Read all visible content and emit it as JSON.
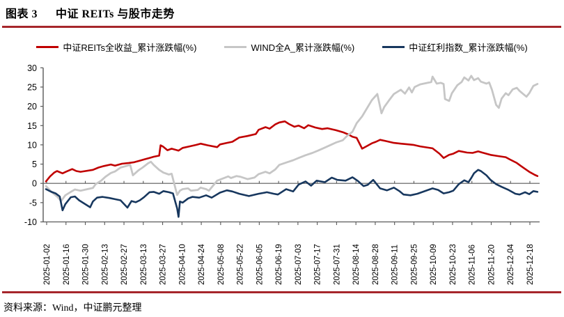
{
  "header": {
    "tag": "图表 3",
    "title": "中证 REITs 与股市走势"
  },
  "footer": {
    "source": "资料来源：Wind，中证鹏元整理"
  },
  "colors": {
    "accent_rule": "#A6262B",
    "axis": "#595959",
    "label_text": "#000000",
    "background": "#FFFFFF"
  },
  "chart_data": {
    "type": "line",
    "title": "中证 REITs 与股市走势",
    "xlabel": "",
    "ylabel": "累计涨跌幅(%)",
    "ylim": [
      -10,
      30
    ],
    "y_ticks": [
      30,
      25,
      20,
      15,
      10,
      5,
      0,
      -5,
      -10
    ],
    "grid": "off",
    "legend_position": "top-center",
    "x_axis_note": "calendar days, day 0 = 2025-01-02, tick every 14 days",
    "x_tick_labels": [
      "2025-01-02",
      "2025-01-16",
      "2025-01-30",
      "2025-02-13",
      "2025-02-27",
      "2025-03-13",
      "2025-03-27",
      "2025-04-10",
      "2025-04-24",
      "2025-05-08",
      "2025-05-22",
      "2025-06-05",
      "2025-06-19",
      "2025-07-03",
      "2025-07-17",
      "2025-07-31",
      "2025-08-14",
      "2025-08-28",
      "2025-09-11",
      "2025-09-25",
      "2025-10-09",
      "2025-10-23",
      "2025-11-06",
      "2025-11-20",
      "2025-12-04",
      "2025-12-18"
    ],
    "series": [
      {
        "name": "中证REITs全收益_累计涨跌幅(%)",
        "color": "#C00000",
        "width": 2.6,
        "points": [
          [
            0,
            0.5
          ],
          [
            3,
            1.8
          ],
          [
            6,
            2.8
          ],
          [
            8,
            3.2
          ],
          [
            12,
            2.6
          ],
          [
            15,
            3.1
          ],
          [
            19,
            3.7
          ],
          [
            22,
            3.2
          ],
          [
            25,
            3.0
          ],
          [
            34,
            3.5
          ],
          [
            38,
            4.1
          ],
          [
            42,
            4.5
          ],
          [
            47,
            4.9
          ],
          [
            50,
            4.6
          ],
          [
            55,
            5.1
          ],
          [
            60,
            5.3
          ],
          [
            64,
            5.5
          ],
          [
            68,
            5.9
          ],
          [
            71,
            6.2
          ],
          [
            75,
            6.6
          ],
          [
            78,
            6.9
          ],
          [
            82,
            7.2
          ],
          [
            83,
            9.9
          ],
          [
            85,
            9.5
          ],
          [
            88,
            8.6
          ],
          [
            91,
            9.0
          ],
          [
            96,
            8.5
          ],
          [
            99,
            9.2
          ],
          [
            104,
            9.6
          ],
          [
            109,
            10.0
          ],
          [
            112,
            10.3
          ],
          [
            117,
            9.9
          ],
          [
            124,
            9.4
          ],
          [
            126,
            10.1
          ],
          [
            131,
            10.5
          ],
          [
            135,
            10.8
          ],
          [
            140,
            11.9
          ],
          [
            146,
            12.3
          ],
          [
            152,
            12.8
          ],
          [
            154,
            13.9
          ],
          [
            159,
            14.6
          ],
          [
            162,
            14.2
          ],
          [
            166,
            15.3
          ],
          [
            169,
            15.8
          ],
          [
            173,
            16.1
          ],
          [
            176,
            15.4
          ],
          [
            180,
            14.7
          ],
          [
            183,
            15.0
          ],
          [
            187,
            14.3
          ],
          [
            190,
            15.1
          ],
          [
            195,
            14.5
          ],
          [
            200,
            14.1
          ],
          [
            204,
            14.3
          ],
          [
            210,
            13.8
          ],
          [
            215,
            13.3
          ],
          [
            219,
            12.7
          ],
          [
            222,
            12.1
          ],
          [
            225,
            11.8
          ],
          [
            229,
            9.0
          ],
          [
            232,
            9.6
          ],
          [
            236,
            10.4
          ],
          [
            239,
            10.8
          ],
          [
            242,
            11.3
          ],
          [
            246,
            11.0
          ],
          [
            252,
            10.5
          ],
          [
            257,
            10.3
          ],
          [
            263,
            10.1
          ],
          [
            266,
            10.0
          ],
          [
            271,
            9.6
          ],
          [
            280,
            9.1
          ],
          [
            285,
            7.7
          ],
          [
            288,
            6.6
          ],
          [
            292,
            7.4
          ],
          [
            295,
            7.7
          ],
          [
            299,
            8.4
          ],
          [
            305,
            8.0
          ],
          [
            309,
            7.9
          ],
          [
            313,
            8.3
          ],
          [
            316,
            8.0
          ],
          [
            322,
            7.4
          ],
          [
            327,
            7.1
          ],
          [
            333,
            6.8
          ],
          [
            336,
            6.2
          ],
          [
            341,
            5.3
          ],
          [
            344,
            4.5
          ],
          [
            348,
            3.5
          ],
          [
            350,
            3.0
          ],
          [
            354,
            2.2
          ],
          [
            356,
            1.9
          ]
        ]
      },
      {
        "name": "WIND全A_累计涨跌幅(%)",
        "color": "#C6C6C6",
        "width": 2.8,
        "points": [
          [
            0,
            -0.7
          ],
          [
            4,
            -2.2
          ],
          [
            8,
            -3.4
          ],
          [
            11,
            -4.6
          ],
          [
            14,
            -3.1
          ],
          [
            18,
            -2.2
          ],
          [
            21,
            -1.6
          ],
          [
            25,
            -1.9
          ],
          [
            34,
            -1.2
          ],
          [
            36,
            -0.2
          ],
          [
            40,
            0.7
          ],
          [
            43,
            1.7
          ],
          [
            47,
            2.7
          ],
          [
            50,
            3.1
          ],
          [
            54,
            4.1
          ],
          [
            57,
            4.4
          ],
          [
            61,
            4.8
          ],
          [
            63,
            2.1
          ],
          [
            67,
            3.4
          ],
          [
            70,
            4.1
          ],
          [
            74,
            5.2
          ],
          [
            76,
            5.6
          ],
          [
            78,
            4.8
          ],
          [
            82,
            3.5
          ],
          [
            85,
            2.8
          ],
          [
            89,
            2.3
          ],
          [
            91,
            2.5
          ],
          [
            92,
            1.2
          ],
          [
            95,
            -3.0
          ],
          [
            97,
            -1.9
          ],
          [
            99,
            -1.5
          ],
          [
            103,
            -1.3
          ],
          [
            105,
            -1.9
          ],
          [
            110,
            -1.7
          ],
          [
            112,
            -1.1
          ],
          [
            116,
            -1.5
          ],
          [
            118,
            -1.9
          ],
          [
            124,
            0.7
          ],
          [
            127,
            1.1
          ],
          [
            132,
            1.8
          ],
          [
            134,
            1.4
          ],
          [
            138,
            1.9
          ],
          [
            141,
            1.7
          ],
          [
            146,
            1.1
          ],
          [
            151,
            1.5
          ],
          [
            154,
            2.4
          ],
          [
            159,
            3.0
          ],
          [
            162,
            2.6
          ],
          [
            166,
            3.6
          ],
          [
            169,
            4.8
          ],
          [
            174,
            5.4
          ],
          [
            179,
            6.0
          ],
          [
            183,
            6.6
          ],
          [
            188,
            7.3
          ],
          [
            193,
            7.9
          ],
          [
            197,
            8.5
          ],
          [
            202,
            9.3
          ],
          [
            207,
            10.1
          ],
          [
            210,
            10.6
          ],
          [
            215,
            11.2
          ],
          [
            218,
            12.3
          ],
          [
            222,
            13.4
          ],
          [
            225,
            15.6
          ],
          [
            229,
            17.4
          ],
          [
            232,
            19.2
          ],
          [
            236,
            21.6
          ],
          [
            240,
            23.2
          ],
          [
            243,
            18.2
          ],
          [
            245,
            19.8
          ],
          [
            249,
            21.8
          ],
          [
            252,
            23.2
          ],
          [
            257,
            24.3
          ],
          [
            260,
            23.3
          ],
          [
            263,
            24.9
          ],
          [
            265,
            23.6
          ],
          [
            267,
            25.0
          ],
          [
            271,
            25.7
          ],
          [
            279,
            26.3
          ],
          [
            280,
            27.7
          ],
          [
            283,
            25.9
          ],
          [
            286,
            26.1
          ],
          [
            288,
            25.8
          ],
          [
            289,
            21.9
          ],
          [
            292,
            21.4
          ],
          [
            294,
            23.4
          ],
          [
            298,
            25.5
          ],
          [
            301,
            26.3
          ],
          [
            303,
            27.5
          ],
          [
            306,
            26.7
          ],
          [
            308,
            27.9
          ],
          [
            310,
            26.8
          ],
          [
            313,
            27.3
          ],
          [
            315,
            26.4
          ],
          [
            319,
            25.9
          ],
          [
            321,
            26.2
          ],
          [
            323,
            24.3
          ],
          [
            326,
            20.4
          ],
          [
            328,
            19.6
          ],
          [
            330,
            22.0
          ],
          [
            333,
            23.4
          ],
          [
            335,
            22.9
          ],
          [
            338,
            24.4
          ],
          [
            341,
            24.8
          ],
          [
            343,
            24.0
          ],
          [
            345,
            23.4
          ],
          [
            348,
            22.5
          ],
          [
            350,
            23.4
          ],
          [
            353,
            25.3
          ],
          [
            356,
            25.8
          ]
        ]
      },
      {
        "name": "中证红利指数_累计涨跌幅(%)",
        "color": "#17375E",
        "width": 2.6,
        "points": [
          [
            0,
            -1.5
          ],
          [
            4,
            -2.2
          ],
          [
            7,
            -2.6
          ],
          [
            10,
            -3.4
          ],
          [
            12,
            -7.0
          ],
          [
            14,
            -5.4
          ],
          [
            18,
            -3.6
          ],
          [
            21,
            -3.4
          ],
          [
            24,
            -4.4
          ],
          [
            32,
            -6.2
          ],
          [
            34,
            -4.7
          ],
          [
            37,
            -3.7
          ],
          [
            41,
            -3.5
          ],
          [
            46,
            -3.8
          ],
          [
            50,
            -4.1
          ],
          [
            54,
            -4.4
          ],
          [
            59,
            -6.3
          ],
          [
            62,
            -4.6
          ],
          [
            65,
            -4.9
          ],
          [
            68,
            -4.4
          ],
          [
            71,
            -3.6
          ],
          [
            75,
            -2.3
          ],
          [
            78,
            -2.2
          ],
          [
            82,
            -2.7
          ],
          [
            85,
            -2.0
          ],
          [
            89,
            -2.3
          ],
          [
            92,
            -2.6
          ],
          [
            95,
            -6.5
          ],
          [
            96,
            -8.7
          ],
          [
            97,
            -4.7
          ],
          [
            99,
            -5.0
          ],
          [
            103,
            -3.9
          ],
          [
            106,
            -3.5
          ],
          [
            111,
            -3.7
          ],
          [
            116,
            -3.1
          ],
          [
            120,
            -3.7
          ],
          [
            126,
            -2.4
          ],
          [
            131,
            -1.8
          ],
          [
            135,
            -2.1
          ],
          [
            140,
            -2.7
          ],
          [
            147,
            -3.3
          ],
          [
            154,
            -2.7
          ],
          [
            160,
            -2.3
          ],
          [
            165,
            -2.7
          ],
          [
            168,
            -2.9
          ],
          [
            174,
            -1.5
          ],
          [
            179,
            -2.1
          ],
          [
            183,
            -0.3
          ],
          [
            188,
            0.5
          ],
          [
            192,
            -0.6
          ],
          [
            196,
            0.7
          ],
          [
            202,
            0.3
          ],
          [
            207,
            1.5
          ],
          [
            211,
            0.9
          ],
          [
            217,
            0.7
          ],
          [
            222,
            1.6
          ],
          [
            226,
            0.6
          ],
          [
            230,
            -0.7
          ],
          [
            233,
            -0.4
          ],
          [
            237,
            0.9
          ],
          [
            242,
            -1.3
          ],
          [
            247,
            -1.8
          ],
          [
            252,
            -1.1
          ],
          [
            256,
            -2.0
          ],
          [
            259,
            -2.9
          ],
          [
            264,
            -3.1
          ],
          [
            269,
            -2.7
          ],
          [
            280,
            -1.3
          ],
          [
            284,
            -1.7
          ],
          [
            288,
            -2.6
          ],
          [
            292,
            -2.3
          ],
          [
            295,
            -1.9
          ],
          [
            299,
            -0.2
          ],
          [
            303,
            0.8
          ],
          [
            306,
            0.3
          ],
          [
            308,
            1.4
          ],
          [
            310,
            2.6
          ],
          [
            313,
            3.5
          ],
          [
            315,
            3.2
          ],
          [
            319,
            2.1
          ],
          [
            322,
            0.9
          ],
          [
            326,
            -0.2
          ],
          [
            330,
            -0.9
          ],
          [
            335,
            -1.7
          ],
          [
            340,
            -2.7
          ],
          [
            343,
            -2.9
          ],
          [
            347,
            -2.3
          ],
          [
            350,
            -2.8
          ],
          [
            353,
            -2.0
          ],
          [
            356,
            -2.2
          ]
        ]
      }
    ]
  }
}
